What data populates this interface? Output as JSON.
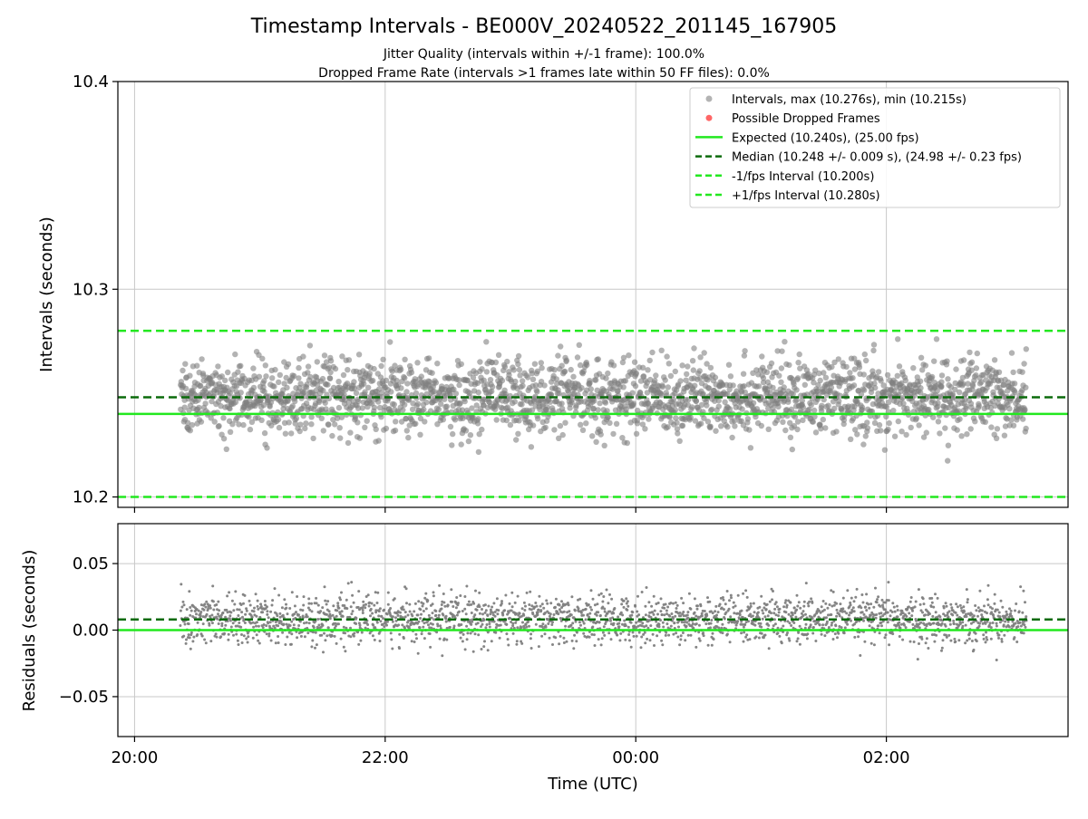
{
  "figure": {
    "title": "Timestamp Intervals - BE000V_20240522_201145_167905",
    "subtitle_1": "Jitter Quality (intervals within +/-1 frame): 100.0%",
    "subtitle_2": "Dropped Frame Rate (intervals >1 frames late within 50 FF files): 0.0%"
  },
  "colors": {
    "points": "#808080",
    "dropped": "#ff5555",
    "expected": "#22e81f",
    "median": "#0b6b0b",
    "bounds": "#22e81f",
    "grid": "#c8c8c8"
  },
  "chart_data": [
    {
      "type": "scatter",
      "ylabel": "Intervals (seconds)",
      "ylim": [
        10.195,
        10.4
      ],
      "yticks": [
        10.2,
        10.3,
        10.4
      ],
      "ytick_labels": [
        "10.2",
        "10.3",
        "10.4"
      ],
      "grid": true,
      "legend_position": "top-right",
      "legend": [
        {
          "label": "Intervals, max (10.276s), min (10.215s)",
          "kind": "point",
          "color": "#808080"
        },
        {
          "label": "Possible Dropped Frames",
          "kind": "point",
          "color": "#ff5555"
        },
        {
          "label": "Expected (10.240s), (25.00 fps)",
          "kind": "solid",
          "color": "#22e81f"
        },
        {
          "label": "Median (10.248 +/- 0.009 s), (24.98 +/- 0.23 fps)",
          "kind": "dashed",
          "color": "#0b6b0b"
        },
        {
          "label": "-1/fps Interval (10.200s)",
          "kind": "dashed",
          "color": "#22e81f"
        },
        {
          "label": "+1/fps Interval (10.280s)",
          "kind": "dashed",
          "color": "#22e81f"
        }
      ],
      "reference_lines": [
        {
          "name": "Expected",
          "y": 10.24,
          "style": "solid"
        },
        {
          "name": "Median",
          "y": 10.248,
          "style": "dashed"
        },
        {
          "name": "-1/fps Interval",
          "y": 10.2,
          "style": "dashed"
        },
        {
          "name": "+1/fps Interval",
          "y": 10.28,
          "style": "dashed"
        }
      ],
      "series": [
        {
          "name": "Intervals",
          "x_range": [
            "20:22",
            "03:07"
          ],
          "center": 10.248,
          "spread": 0.009,
          "max": 10.276,
          "min": 10.215,
          "count": 2400
        }
      ],
      "x_range": [
        "19:52",
        "03:27"
      ]
    },
    {
      "type": "scatter",
      "ylabel": "Residuals (seconds)",
      "xlabel": "Time (UTC)",
      "ylim": [
        -0.08,
        0.08
      ],
      "yticks": [
        0.05,
        0.0,
        -0.05
      ],
      "ytick_labels": [
        "0.05",
        "0.00",
        "−0.05"
      ],
      "xticks": [
        "20:00",
        "22:00",
        "00:00",
        "02:00"
      ],
      "x_range": [
        "19:52",
        "03:27"
      ],
      "grid": true,
      "reference_lines": [
        {
          "name": "Expected",
          "y": 0.0,
          "style": "solid"
        },
        {
          "name": "Median",
          "y": 0.008,
          "style": "dashed"
        }
      ],
      "series": [
        {
          "name": "Residuals",
          "x_range": [
            "20:22",
            "03:07"
          ],
          "center": 0.008,
          "spread": 0.009,
          "max": 0.036,
          "min": -0.025,
          "count": 2400
        }
      ]
    }
  ]
}
